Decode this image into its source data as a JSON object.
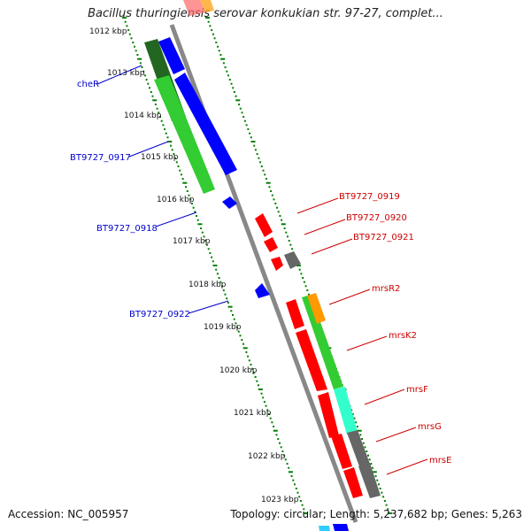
{
  "title": "Bacillus thuringiensis serovar konkukian str. 97-27, complet...",
  "footer": {
    "accession": "Accession: NC_005957",
    "summary": "Topology: circular; Length: 5,237,682 bp; Genes: 5,263"
  },
  "colors": {
    "forward_strand": "#0000ff",
    "reverse_strand": "#ff0000",
    "cds_green": "#33cc33",
    "orange": "#ff9900",
    "cyan": "#33ffcc",
    "gray": "#666666",
    "tick_green": "#008000",
    "backbone": "#888888",
    "label_blue": "#0000cc",
    "label_red": "#cc0000"
  },
  "kbp_ticks": [
    "1012 kbp",
    "1013 kbp",
    "1014 kbp",
    "1015 kbp",
    "1016 kbp",
    "1017 kbp",
    "1018 kbp",
    "1019 kbp",
    "1020 kbp",
    "1021 kbp",
    "1022 kbp",
    "1023 kbp"
  ],
  "gene_labels_left": [
    "cheR",
    "BT9727_0917",
    "BT9727_0918",
    "BT9727_0922"
  ],
  "gene_labels_right": [
    "BT9727_0919",
    "BT9727_0920",
    "BT9727_0921",
    "mrsR2",
    "mrsK2",
    "mrsF",
    "mrsG",
    "mrsE"
  ]
}
